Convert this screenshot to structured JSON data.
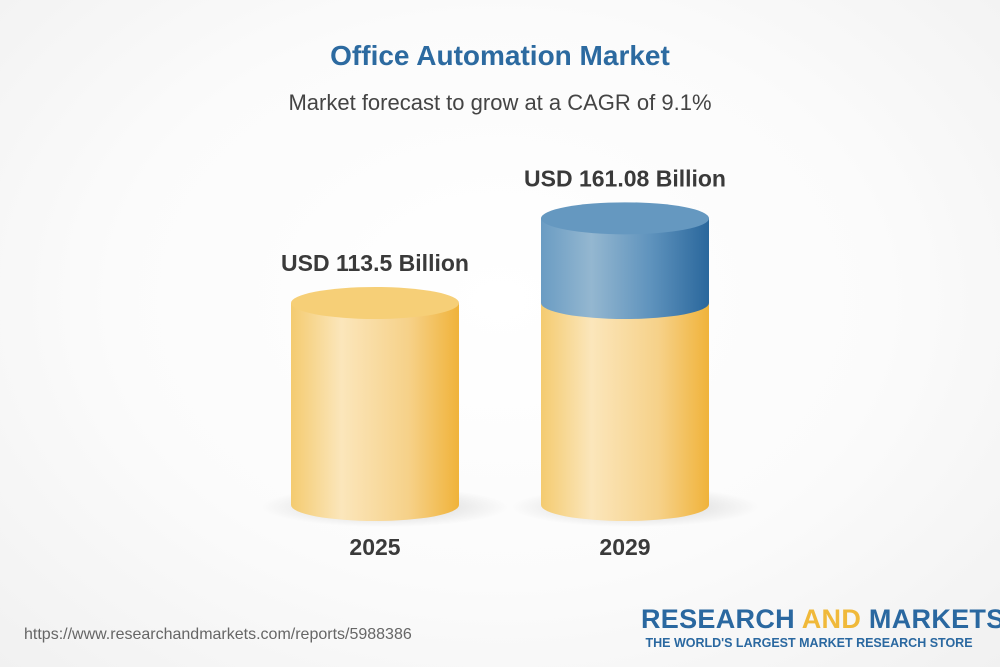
{
  "chart_data": {
    "type": "bar",
    "style": "3d-cylinder",
    "title": "Office Automation Market",
    "subtitle": "Market forecast to grow at a CAGR of 9.1%",
    "categories": [
      "2025",
      "2029"
    ],
    "values": [
      113.5,
      161.08
    ],
    "data_labels": [
      "USD 113.5 Billion",
      "USD 161.08 Billion"
    ],
    "unit": "USD Billion",
    "colors": {
      "base": "#f2c158",
      "growth": "#2f6da0",
      "title": "#2c6aa0"
    }
  },
  "footer": {
    "url": "https://www.researchandmarkets.com/reports/5988386",
    "logo_part1": "RESEARCH ",
    "logo_part2": "AND",
    "logo_part3": " MARKETS",
    "logo_tagline": "THE WORLD'S LARGEST MARKET RESEARCH STORE"
  }
}
